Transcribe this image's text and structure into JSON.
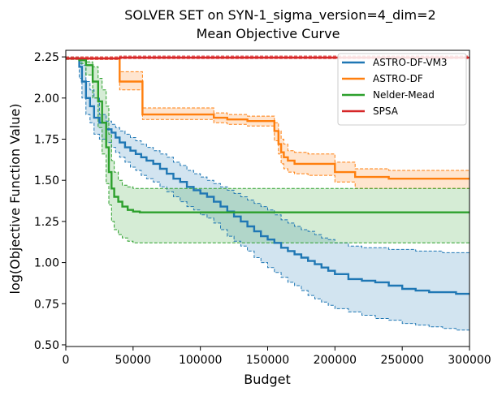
{
  "chart_data": {
    "type": "line",
    "title": "SOLVER SET on SYN-1_sigma_version=4_dim=2",
    "subtitle": "Mean Objective Curve",
    "xlabel": "Budget",
    "ylabel": "log(Objective Function Value)",
    "xlim": [
      0,
      300000
    ],
    "ylim": [
      0.49,
      2.29
    ],
    "xticks": [
      0,
      50000,
      100000,
      150000,
      200000,
      250000,
      300000
    ],
    "yticks": [
      0.5,
      0.75,
      1.0,
      1.25,
      1.5,
      1.75,
      2.0,
      2.25
    ],
    "grid": false,
    "legend_position": "top-right",
    "series": [
      {
        "name": "ASTRO-DF-VM3",
        "color": "#1f77b4",
        "x": [
          0,
          10000,
          12000,
          15000,
          18000,
          21000,
          25000,
          30000,
          34000,
          37000,
          40000,
          44000,
          48000,
          52000,
          56000,
          60000,
          65000,
          70000,
          75000,
          80000,
          85000,
          90000,
          95000,
          100000,
          105000,
          110000,
          115000,
          120000,
          125000,
          130000,
          135000,
          140000,
          145000,
          150000,
          155000,
          160000,
          165000,
          170000,
          175000,
          180000,
          185000,
          190000,
          195000,
          200000,
          210000,
          220000,
          230000,
          240000,
          250000,
          260000,
          270000,
          280000,
          290000,
          300000
        ],
        "values": [
          2.24,
          2.19,
          2.1,
          2.0,
          1.95,
          1.88,
          1.85,
          1.81,
          1.79,
          1.76,
          1.73,
          1.7,
          1.68,
          1.66,
          1.64,
          1.62,
          1.6,
          1.57,
          1.54,
          1.51,
          1.49,
          1.46,
          1.44,
          1.42,
          1.4,
          1.37,
          1.34,
          1.31,
          1.28,
          1.25,
          1.22,
          1.19,
          1.16,
          1.14,
          1.12,
          1.09,
          1.07,
          1.05,
          1.03,
          1.01,
          0.99,
          0.97,
          0.95,
          0.93,
          0.9,
          0.89,
          0.88,
          0.86,
          0.84,
          0.83,
          0.82,
          0.82,
          0.81,
          0.81
        ],
        "upper": [
          2.24,
          2.23,
          2.2,
          2.1,
          2.05,
          2.0,
          1.9,
          1.86,
          1.84,
          1.82,
          1.8,
          1.78,
          1.76,
          1.74,
          1.72,
          1.7,
          1.68,
          1.66,
          1.64,
          1.61,
          1.59,
          1.56,
          1.54,
          1.52,
          1.5,
          1.48,
          1.46,
          1.44,
          1.42,
          1.4,
          1.38,
          1.36,
          1.34,
          1.32,
          1.29,
          1.26,
          1.24,
          1.22,
          1.2,
          1.19,
          1.17,
          1.15,
          1.14,
          1.12,
          1.1,
          1.09,
          1.09,
          1.08,
          1.08,
          1.07,
          1.07,
          1.06,
          1.06,
          1.06
        ],
        "lower": [
          2.24,
          2.12,
          2.0,
          1.9,
          1.85,
          1.78,
          1.75,
          1.73,
          1.7,
          1.67,
          1.64,
          1.61,
          1.58,
          1.56,
          1.53,
          1.51,
          1.49,
          1.46,
          1.43,
          1.4,
          1.37,
          1.34,
          1.32,
          1.29,
          1.27,
          1.24,
          1.2,
          1.16,
          1.13,
          1.1,
          1.07,
          1.03,
          1.0,
          0.97,
          0.94,
          0.91,
          0.88,
          0.86,
          0.83,
          0.8,
          0.78,
          0.76,
          0.74,
          0.72,
          0.7,
          0.68,
          0.66,
          0.65,
          0.63,
          0.62,
          0.61,
          0.6,
          0.59,
          0.58
        ]
      },
      {
        "name": "ASTRO-DF",
        "color": "#ff7f0e",
        "x": [
          0,
          40000,
          57000,
          70000,
          110000,
          120000,
          135000,
          155000,
          158000,
          160000,
          162000,
          165000,
          170000,
          180000,
          200000,
          215000,
          240000,
          300000
        ],
        "values": [
          2.24,
          2.1,
          1.9,
          1.9,
          1.88,
          1.87,
          1.86,
          1.8,
          1.72,
          1.67,
          1.64,
          1.62,
          1.6,
          1.6,
          1.55,
          1.52,
          1.51,
          1.51
        ],
        "upper": [
          2.24,
          2.16,
          1.94,
          1.94,
          1.91,
          1.9,
          1.89,
          1.85,
          1.8,
          1.75,
          1.72,
          1.68,
          1.67,
          1.66,
          1.61,
          1.57,
          1.56,
          1.56
        ],
        "lower": [
          2.24,
          2.05,
          1.87,
          1.87,
          1.85,
          1.84,
          1.83,
          1.74,
          1.66,
          1.6,
          1.57,
          1.55,
          1.54,
          1.53,
          1.49,
          1.45,
          1.45,
          1.45
        ]
      },
      {
        "name": "Nelder-Mead",
        "color": "#2ca02c",
        "x": [
          0,
          10000,
          15000,
          20000,
          24000,
          27000,
          30000,
          32000,
          34000,
          36000,
          39000,
          42000,
          46000,
          50000,
          55000,
          60000,
          300000
        ],
        "values": [
          2.24,
          2.23,
          2.2,
          2.1,
          1.98,
          1.85,
          1.7,
          1.55,
          1.45,
          1.4,
          1.37,
          1.34,
          1.32,
          1.31,
          1.305,
          1.305,
          1.305
        ],
        "upper": [
          2.24,
          2.24,
          2.22,
          2.19,
          2.12,
          2.05,
          1.95,
          1.78,
          1.62,
          1.55,
          1.5,
          1.47,
          1.46,
          1.45,
          1.45,
          1.45,
          1.45
        ],
        "lower": [
          2.24,
          2.21,
          2.14,
          2.0,
          1.82,
          1.66,
          1.48,
          1.35,
          1.25,
          1.2,
          1.17,
          1.15,
          1.13,
          1.12,
          1.12,
          1.12,
          1.12
        ]
      },
      {
        "name": "SPSA",
        "color": "#d62728",
        "x": [
          0,
          20000,
          40000,
          300000
        ],
        "values": [
          2.24,
          2.24,
          2.245,
          2.245
        ],
        "upper": [
          2.25,
          2.25,
          2.255,
          2.255
        ],
        "lower": [
          2.235,
          2.235,
          2.24,
          2.24
        ]
      }
    ]
  }
}
